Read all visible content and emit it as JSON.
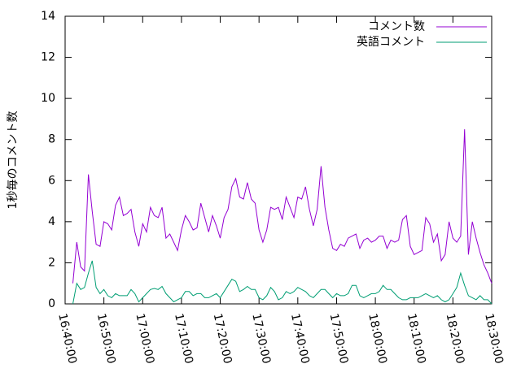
{
  "chart_data": {
    "type": "line",
    "ylabel": "1秒毎のコメント数",
    "x": [
      "16:42:00",
      "16:43:00",
      "16:44:00",
      "16:45:00",
      "16:46:00",
      "16:47:00",
      "16:48:00",
      "16:49:00",
      "16:50:00",
      "16:51:00",
      "16:52:00",
      "16:53:00",
      "16:54:00",
      "16:55:00",
      "16:56:00",
      "16:57:00",
      "16:58:00",
      "16:59:00",
      "17:00:00",
      "17:01:00",
      "17:02:00",
      "17:03:00",
      "17:04:00",
      "17:05:00",
      "17:06:00",
      "17:07:00",
      "17:08:00",
      "17:09:00",
      "17:10:00",
      "17:11:00",
      "17:12:00",
      "17:13:00",
      "17:14:00",
      "17:15:00",
      "17:16:00",
      "17:17:00",
      "17:18:00",
      "17:19:00",
      "17:20:00",
      "17:21:00",
      "17:22:00",
      "17:23:00",
      "17:24:00",
      "17:25:00",
      "17:26:00",
      "17:27:00",
      "17:28:00",
      "17:29:00",
      "17:30:00",
      "17:31:00",
      "17:32:00",
      "17:33:00",
      "17:34:00",
      "17:35:00",
      "17:36:00",
      "17:37:00",
      "17:38:00",
      "17:39:00",
      "17:40:00",
      "17:41:00",
      "17:42:00",
      "17:43:00",
      "17:44:00",
      "17:45:00",
      "17:46:00",
      "17:47:00",
      "17:48:00",
      "17:49:00",
      "17:50:00",
      "17:51:00",
      "17:52:00",
      "17:53:00",
      "17:54:00",
      "17:55:00",
      "17:56:00",
      "17:57:00",
      "17:58:00",
      "17:59:00",
      "18:00:00",
      "18:01:00",
      "18:02:00",
      "18:03:00",
      "18:04:00",
      "18:05:00",
      "18:06:00",
      "18:07:00",
      "18:08:00",
      "18:09:00",
      "18:10:00",
      "18:11:00",
      "18:12:00",
      "18:13:00",
      "18:14:00",
      "18:15:00",
      "18:16:00",
      "18:17:00",
      "18:18:00",
      "18:19:00",
      "18:20:00",
      "18:21:00",
      "18:22:00",
      "18:23:00",
      "18:24:00",
      "18:25:00",
      "18:26:00",
      "18:27:00",
      "18:28:00",
      "18:29:00",
      "18:30:00"
    ],
    "series": [
      {
        "name": "コメント数",
        "color": "#9400d3",
        "values": [
          1.0,
          3.0,
          1.8,
          1.6,
          6.3,
          4.5,
          2.9,
          2.8,
          4.0,
          3.9,
          3.6,
          4.8,
          5.2,
          4.3,
          4.4,
          4.6,
          3.5,
          2.8,
          3.9,
          3.5,
          4.7,
          4.3,
          4.2,
          4.7,
          3.2,
          3.4,
          3.0,
          2.6,
          3.6,
          4.3,
          4.0,
          3.6,
          3.7,
          4.9,
          4.2,
          3.5,
          4.3,
          3.8,
          3.2,
          4.2,
          4.6,
          5.7,
          6.1,
          5.2,
          5.1,
          5.9,
          5.1,
          4.9,
          3.6,
          3.0,
          3.6,
          4.7,
          4.6,
          4.7,
          4.1,
          5.2,
          4.7,
          4.2,
          5.2,
          5.1,
          5.7,
          4.6,
          3.8,
          4.6,
          6.7,
          4.7,
          3.6,
          2.7,
          2.6,
          2.9,
          2.8,
          3.2,
          3.3,
          3.4,
          2.7,
          3.1,
          3.2,
          3.0,
          3.1,
          3.3,
          3.3,
          2.7,
          3.1,
          3.0,
          3.1,
          4.1,
          4.3,
          2.8,
          2.4,
          2.5,
          2.6,
          4.2,
          3.9,
          3.0,
          3.4,
          2.1,
          2.4,
          4.0,
          3.2,
          3.0,
          3.3,
          8.5,
          2.4,
          4.0,
          3.2,
          2.5,
          1.9,
          1.5,
          1.0
        ]
      },
      {
        "name": "英語コメント",
        "color": "#009e73",
        "values": [
          0,
          1.0,
          0.7,
          0.8,
          1.5,
          2.1,
          0.8,
          0.5,
          0.7,
          0.4,
          0.3,
          0.5,
          0.4,
          0.4,
          0.4,
          0.7,
          0.5,
          0.1,
          0.3,
          0.5,
          0.7,
          0.75,
          0.7,
          0.85,
          0.5,
          0.3,
          0.1,
          0.2,
          0.3,
          0.6,
          0.6,
          0.4,
          0.5,
          0.5,
          0.3,
          0.3,
          0.4,
          0.5,
          0.3,
          0.6,
          0.9,
          1.2,
          1.1,
          0.6,
          0.7,
          0.85,
          0.7,
          0.7,
          0.3,
          0.2,
          0.4,
          0.8,
          0.6,
          0.2,
          0.3,
          0.6,
          0.5,
          0.6,
          0.8,
          0.7,
          0.6,
          0.4,
          0.3,
          0.5,
          0.7,
          0.7,
          0.5,
          0.3,
          0.5,
          0.4,
          0.4,
          0.5,
          0.9,
          0.9,
          0.4,
          0.3,
          0.4,
          0.5,
          0.5,
          0.6,
          0.9,
          0.7,
          0.7,
          0.5,
          0.3,
          0.2,
          0.2,
          0.3,
          0.3,
          0.3,
          0.4,
          0.5,
          0.4,
          0.3,
          0.4,
          0.2,
          0.1,
          0.2,
          0.5,
          0.8,
          1.5,
          0.9,
          0.4,
          0.3,
          0.2,
          0.4,
          0.2,
          0.2,
          0
        ]
      }
    ],
    "xlim": [
      "16:40:00",
      "18:30:00"
    ],
    "xticks": [
      "16:40:00",
      "16:50:00",
      "17:00:00",
      "17:10:00",
      "17:20:00",
      "17:30:00",
      "17:40:00",
      "17:50:00",
      "18:00:00",
      "18:10:00",
      "18:20:00",
      "18:30:00"
    ],
    "ylim": [
      0,
      14
    ],
    "yticks": [
      0,
      2,
      4,
      6,
      8,
      10,
      12,
      14
    ],
    "legend": "top-right",
    "grid": false
  }
}
